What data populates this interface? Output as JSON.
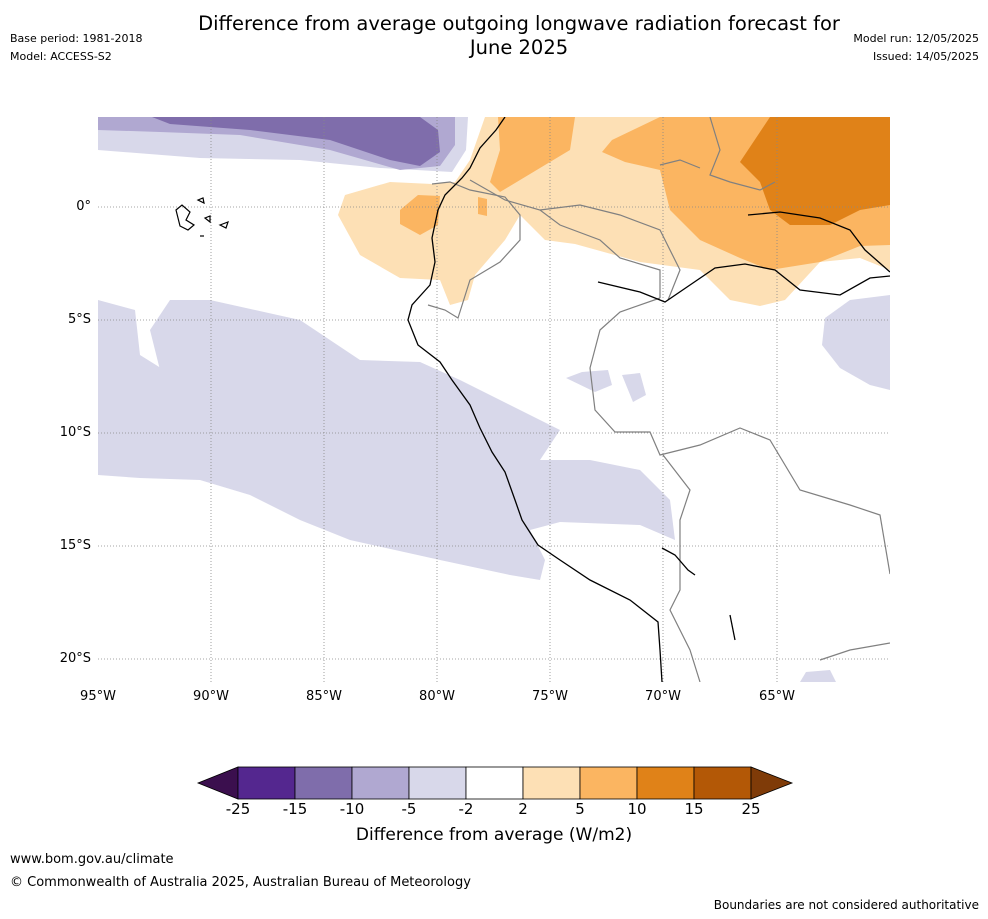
{
  "title": "Difference from average outgoing longwave radiation forecast for\nJune 2025",
  "meta": {
    "base_period": "Base period: 1981-2018",
    "model": "Model: ACCESS-S2",
    "model_run": "Model run: 12/05/2025",
    "issued": "Issued: 14/05/2025"
  },
  "map": {
    "lat_labels": [
      "0°",
      "5°S",
      "10°S",
      "15°S",
      "20°S"
    ],
    "lon_labels": [
      "95°W",
      "90°W",
      "85°W",
      "80°W",
      "75°W",
      "70°W",
      "65°W"
    ]
  },
  "colorbar": {
    "ticks": [
      "-25",
      "-15",
      "-10",
      "-5",
      "-2",
      "2",
      "5",
      "10",
      "15",
      "25"
    ],
    "colors": [
      "#3b0f4e",
      "#54278f",
      "#7f6dab",
      "#b0a8d1",
      "#d8d8ea",
      "#ffffff",
      "#fde0b5",
      "#fbb561",
      "#e08218",
      "#b35806",
      "#7f3b08"
    ],
    "label": "Difference from average (W/m2)"
  },
  "footer": {
    "url": "www.bom.gov.au/climate",
    "copyright": "© Commonwealth of Australia 2025, Australian Bureau of Meteorology",
    "disclaimer": "Boundaries are not considered authoritative"
  }
}
